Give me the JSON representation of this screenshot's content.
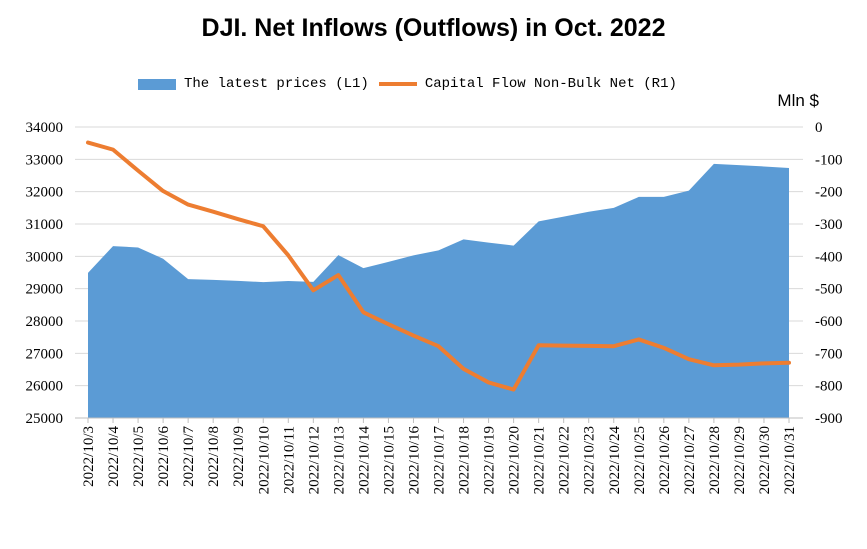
{
  "chart_data": {
    "type": "area+line",
    "title": "DJI. Net Inflows (Outflows) in Oct. 2022",
    "right_axis_unit": "Mln $",
    "categories": [
      "2022/10/3",
      "2022/10/4",
      "2022/10/5",
      "2022/10/6",
      "2022/10/7",
      "2022/10/8",
      "2022/10/9",
      "2022/10/10",
      "2022/10/11",
      "2022/10/12",
      "2022/10/13",
      "2022/10/14",
      "2022/10/15",
      "2022/10/16",
      "2022/10/17",
      "2022/10/18",
      "2022/10/19",
      "2022/10/20",
      "2022/10/21",
      "2022/10/22",
      "2022/10/23",
      "2022/10/24",
      "2022/10/25",
      "2022/10/26",
      "2022/10/27",
      "2022/10/28",
      "2022/10/29",
      "2022/10/30",
      "2022/10/31"
    ],
    "series": [
      {
        "name": "The latest prices (L1)",
        "type": "area",
        "axis": "left",
        "color": "#5b9bd5",
        "values": [
          29490,
          30316,
          30274,
          29926,
          29297,
          29270,
          29240,
          29203,
          29239,
          29211,
          30038,
          29635,
          29830,
          30030,
          30186,
          30523,
          30424,
          30333,
          31082,
          31230,
          31380,
          31500,
          31837,
          31839,
          32034,
          32861,
          32820,
          32780,
          32733
        ]
      },
      {
        "name": "Capital Flow Non-Bulk Net (R1)",
        "type": "line",
        "axis": "right",
        "color": "#ed7d31",
        "values": [
          -48,
          -70,
          -135,
          -198,
          -240,
          -262,
          -285,
          -307,
          -397,
          -505,
          -458,
          -573,
          -610,
          -645,
          -678,
          -748,
          -790,
          -812,
          -675,
          -676,
          -677,
          -678,
          -657,
          -683,
          -718,
          -737,
          -735,
          -731,
          -729
        ]
      }
    ],
    "y_left": {
      "ylim": [
        25000,
        34000
      ],
      "ticks": [
        "25000",
        "26000",
        "27000",
        "28000",
        "29000",
        "30000",
        "31000",
        "32000",
        "33000",
        "34000"
      ]
    },
    "y_right": {
      "ylim": [
        -900,
        0
      ],
      "ticks": [
        "-900",
        "-800",
        "-700",
        "-600",
        "-500",
        "-400",
        "-300",
        "-200",
        "-100",
        "0"
      ]
    },
    "grid": true,
    "legend_position": "top"
  }
}
